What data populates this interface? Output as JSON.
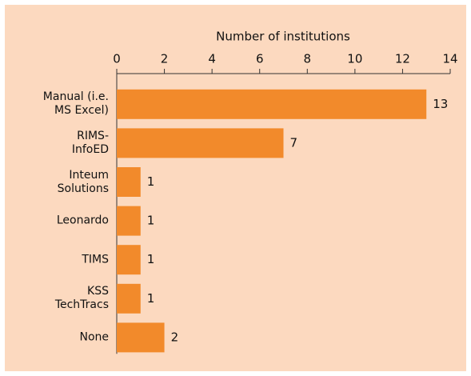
{
  "chart_data": {
    "type": "bar",
    "orientation": "horizontal",
    "x_label": "Number of institutions",
    "categories": [
      "Manual (i.e.\nMS Excel)",
      "RIMS-\nInfoED",
      "Inteum\nSolutions",
      "Leonardo",
      "TIMS",
      "KSS\nTechTracs",
      "None"
    ],
    "values": [
      13,
      7,
      1,
      1,
      1,
      1,
      2
    ],
    "color": "#f28a2b",
    "xlim": [
      0,
      14
    ],
    "xticks": [
      0,
      2,
      4,
      6,
      8,
      10,
      12,
      14
    ]
  }
}
